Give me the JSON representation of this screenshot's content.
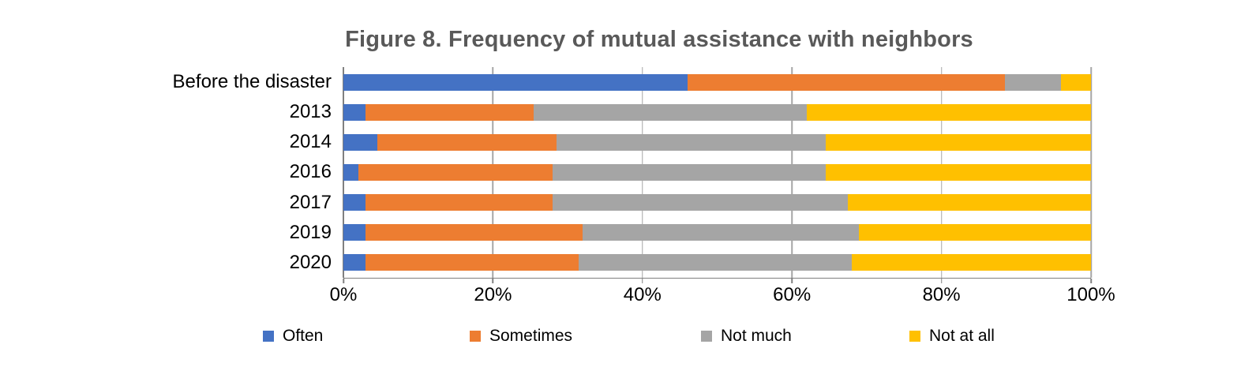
{
  "title": "Figure 8. Frequency of mutual assistance with neighbors",
  "colors": {
    "often": "#4472C4",
    "sometimes": "#ED7D31",
    "not_much": "#A5A5A5",
    "not_at_all": "#FFC000",
    "title_text": "#595959",
    "gridline": "#A6A6A6",
    "axis_line": "#808080"
  },
  "x_axis": {
    "tick_labels": [
      "0%",
      "20%",
      "40%",
      "60%",
      "80%",
      "100%"
    ],
    "min": 0,
    "max": 100
  },
  "chart_data": {
    "type": "bar",
    "orientation": "horizontal-stacked",
    "title": "Figure 8. Frequency of mutual assistance with neighbors",
    "categories": [
      "Before the disaster",
      "2013",
      "2014",
      "2016",
      "2017",
      "2019",
      "2020"
    ],
    "series": [
      {
        "name": "Often",
        "color": "#4472C4",
        "values": [
          46,
          3,
          4.5,
          2,
          3,
          3,
          3
        ]
      },
      {
        "name": "Sometimes",
        "color": "#ED7D31",
        "values": [
          42.5,
          22.5,
          24,
          26,
          25,
          29,
          28.5
        ]
      },
      {
        "name": "Not much",
        "color": "#A5A5A5",
        "values": [
          7.5,
          36.5,
          36,
          36.5,
          39.5,
          37,
          36.5
        ]
      },
      {
        "name": "Not at all",
        "color": "#FFC000",
        "values": [
          4,
          38,
          35.5,
          35.5,
          32.5,
          31,
          32
        ]
      }
    ],
    "xlabel": "",
    "ylabel": "",
    "xlim": [
      0,
      100
    ],
    "grid": true,
    "legend_position": "bottom"
  }
}
